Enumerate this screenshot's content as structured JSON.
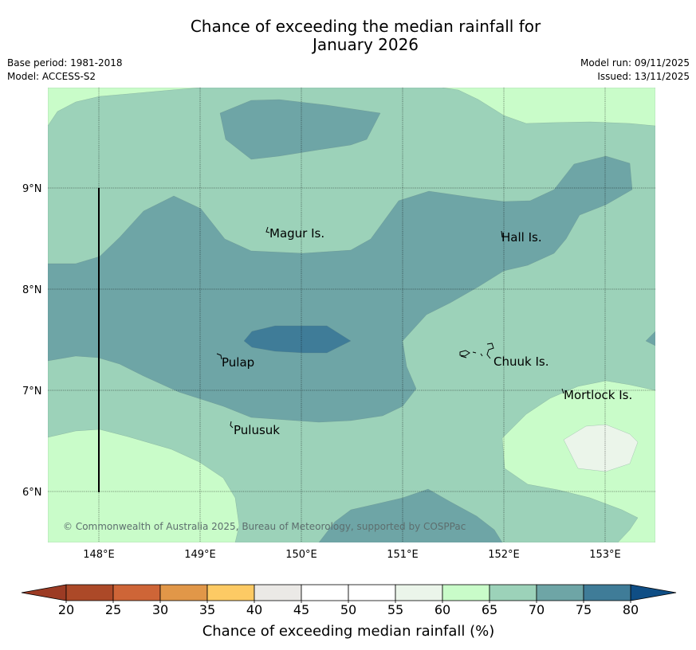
{
  "title_line1": "Chance of exceeding the median rainfall for",
  "title_line2": "January 2026",
  "meta": {
    "base_period": "Base period: 1981-2018",
    "model": "Model: ACCESS-S2",
    "model_run": "Model run: 09/11/2025",
    "issued": "Issued: 13/11/2025"
  },
  "map": {
    "lat_ticks": [
      "9°N",
      "8°N",
      "7°N",
      "6°N"
    ],
    "lon_ticks": [
      "148°E",
      "149°E",
      "150°E",
      "151°E",
      "152°E",
      "153°E"
    ],
    "places": {
      "magur": "Magur Is.",
      "hall": "Hall Is.",
      "pulap": "Pulap",
      "chuuk": "Chuuk Is.",
      "mortlock": "Mortlock Is.",
      "pulusuk": "Pulusuk"
    },
    "credit": "© Commonwealth of Australia 2025, Bureau of Meteorology, supported by COSPPac",
    "colors": {
      "c55_60": "#ebf5ea",
      "c60_65": "#c9fcc9",
      "c65_70": "#9cd2b9",
      "c70_75": "#6ea5a6",
      "c75_80": "#3f7c98"
    }
  },
  "colorbar": {
    "label": "Chance of exceeding median rainfall (%)",
    "ticks": [
      "20",
      "25",
      "30",
      "35",
      "40",
      "45",
      "50",
      "55",
      "60",
      "65",
      "70",
      "75",
      "80"
    ],
    "colors": [
      "#ac4928",
      "#ce6537",
      "#e19748",
      "#fdca64",
      "#ebe9e6",
      "#ffffff",
      "#ffffff",
      "#ebf5ea",
      "#c9fcc9",
      "#9cd2b9",
      "#6ea5a6",
      "#3f7c98"
    ],
    "under_color": "#9c3b24",
    "over_color": "#0f4e85"
  }
}
